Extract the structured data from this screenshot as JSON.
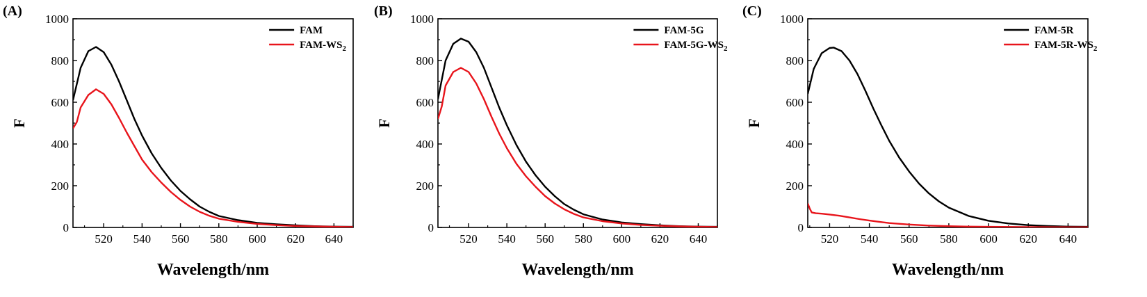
{
  "colors": {
    "black_series": "#000000",
    "red_series": "#e8141b"
  },
  "chart_data": [
    {
      "type": "line",
      "panel_label": "(A)",
      "xlabel": "Wavelength/nm",
      "ylabel": "F",
      "xlim": [
        504,
        650
      ],
      "ylim": [
        0,
        1000
      ],
      "xticks": [
        520,
        540,
        560,
        580,
        600,
        620,
        640
      ],
      "yticks": [
        0,
        200,
        400,
        600,
        800,
        1000
      ],
      "legend_position": "top-right",
      "series": [
        {
          "name": "FAM",
          "color": "#000000",
          "x": [
            504,
            508,
            512,
            516,
            520,
            524,
            528,
            532,
            536,
            540,
            545,
            550,
            555,
            560,
            565,
            570,
            575,
            580,
            590,
            600,
            610,
            620,
            630,
            640,
            650
          ],
          "y": [
            610,
            765,
            845,
            865,
            840,
            780,
            700,
            610,
            520,
            440,
            355,
            285,
            225,
            175,
            135,
            100,
            75,
            55,
            35,
            22,
            15,
            10,
            6,
            4,
            3
          ]
        },
        {
          "name": "FAM-WS",
          "name_sub": "2",
          "color": "#e8141b",
          "x": [
            504,
            506,
            508,
            512,
            516,
            520,
            524,
            528,
            532,
            536,
            540,
            545,
            550,
            555,
            560,
            565,
            570,
            575,
            580,
            590,
            600,
            610,
            620,
            630,
            640,
            650
          ],
          "y": [
            475,
            505,
            575,
            635,
            662,
            640,
            590,
            525,
            455,
            390,
            325,
            265,
            215,
            170,
            132,
            100,
            75,
            56,
            42,
            27,
            17,
            11,
            7,
            5,
            3,
            2
          ]
        }
      ]
    },
    {
      "type": "line",
      "panel_label": "(B)",
      "xlabel": "Wavelength/nm",
      "ylabel": "F",
      "xlim": [
        504,
        650
      ],
      "ylim": [
        0,
        1000
      ],
      "xticks": [
        520,
        540,
        560,
        580,
        600,
        620,
        640
      ],
      "yticks": [
        0,
        200,
        400,
        600,
        800,
        1000
      ],
      "legend_position": "top-right",
      "series": [
        {
          "name": "FAM-5G",
          "color": "#000000",
          "x": [
            504,
            508,
            512,
            516,
            520,
            524,
            528,
            532,
            536,
            540,
            545,
            550,
            555,
            560,
            565,
            570,
            575,
            580,
            590,
            600,
            610,
            620,
            630,
            640,
            650
          ],
          "y": [
            615,
            800,
            880,
            905,
            890,
            840,
            765,
            670,
            575,
            490,
            395,
            315,
            250,
            195,
            150,
            112,
            85,
            63,
            38,
            24,
            16,
            10,
            6,
            4,
            3
          ]
        },
        {
          "name": "FAM-5G-WS",
          "name_sub": "2",
          "color": "#e8141b",
          "x": [
            504,
            506,
            508,
            512,
            516,
            520,
            524,
            528,
            532,
            536,
            540,
            545,
            550,
            555,
            560,
            565,
            570,
            575,
            580,
            590,
            600,
            610,
            620,
            630,
            640,
            650
          ],
          "y": [
            520,
            580,
            680,
            745,
            765,
            745,
            690,
            615,
            530,
            450,
            380,
            305,
            245,
            195,
            150,
            115,
            87,
            65,
            48,
            30,
            19,
            12,
            8,
            5,
            3,
            2
          ]
        }
      ]
    },
    {
      "type": "line",
      "panel_label": "(C)",
      "xlabel": "Wavelength/nm",
      "ylabel": "F",
      "xlim": [
        509,
        650
      ],
      "ylim": [
        0,
        1000
      ],
      "xticks": [
        520,
        540,
        560,
        580,
        600,
        620,
        640
      ],
      "yticks": [
        0,
        200,
        400,
        600,
        800,
        1000
      ],
      "legend_position": "top-right",
      "series": [
        {
          "name": "FAM-5R",
          "color": "#000000",
          "x": [
            509,
            512,
            516,
            520,
            522,
            526,
            530,
            534,
            538,
            542,
            546,
            550,
            555,
            560,
            565,
            570,
            575,
            580,
            590,
            600,
            610,
            620,
            630,
            640,
            650
          ],
          "y": [
            640,
            760,
            835,
            860,
            862,
            845,
            800,
            735,
            655,
            570,
            490,
            415,
            335,
            268,
            210,
            163,
            125,
            95,
            55,
            32,
            19,
            11,
            7,
            4,
            3
          ]
        },
        {
          "name": "FAM-5R-WS",
          "name_sub": "2",
          "color": "#e8141b",
          "x": [
            509,
            510,
            511,
            513,
            516,
            520,
            525,
            530,
            535,
            540,
            545,
            550,
            560,
            570,
            580,
            590,
            600,
            620,
            640,
            650
          ],
          "y": [
            115,
            90,
            72,
            68,
            66,
            62,
            56,
            48,
            40,
            33,
            27,
            21,
            14,
            9,
            6,
            4,
            3,
            2,
            1,
            1
          ]
        }
      ]
    }
  ]
}
